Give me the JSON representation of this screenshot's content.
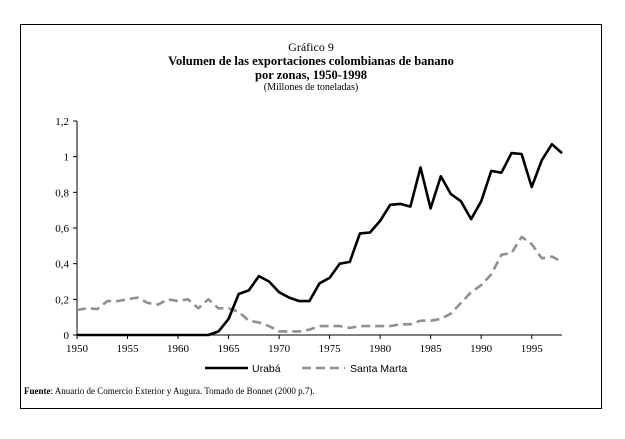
{
  "chart_data": {
    "type": "line",
    "title": "Gráfico 9",
    "subtitle": "Volumen de las exportaciones colombianas de banano",
    "subtitle2": "por zonas, 1950-1998",
    "units": "(Millones de toneladas)",
    "xlabel": "",
    "ylabel": "",
    "xlim": [
      1950,
      1998
    ],
    "ylim": [
      0,
      1.2
    ],
    "x_ticks": [
      "1950",
      "1955",
      "1960",
      "1965",
      "1970",
      "1975",
      "1980",
      "1985",
      "1990",
      "1995"
    ],
    "y_ticks": [
      "0",
      "0,2",
      "0,4",
      "0,6",
      "0,8",
      "1",
      "1,2"
    ],
    "grid": false,
    "legend_position": "bottom",
    "series": [
      {
        "name": "Urabá",
        "color": "#000000",
        "dash": "solid",
        "x": [
          1950,
          1951,
          1952,
          1953,
          1954,
          1955,
          1956,
          1957,
          1958,
          1959,
          1960,
          1961,
          1962,
          1963,
          1964,
          1965,
          1966,
          1967,
          1968,
          1969,
          1970,
          1971,
          1972,
          1973,
          1974,
          1975,
          1976,
          1977,
          1978,
          1979,
          1980,
          1981,
          1982,
          1983,
          1984,
          1985,
          1986,
          1987,
          1988,
          1989,
          1990,
          1991,
          1992,
          1993,
          1994,
          1995,
          1996,
          1997,
          1998
        ],
        "values": [
          0,
          0,
          0,
          0,
          0,
          0,
          0,
          0,
          0,
          0,
          0,
          0,
          0,
          0,
          0.02,
          0.09,
          0.23,
          0.25,
          0.33,
          0.3,
          0.24,
          0.21,
          0.19,
          0.19,
          0.29,
          0.32,
          0.4,
          0.41,
          0.57,
          0.575,
          0.64,
          0.73,
          0.735,
          0.72,
          0.94,
          0.71,
          0.89,
          0.79,
          0.75,
          0.65,
          0.75,
          0.92,
          0.91,
          1.02,
          1.015,
          0.83,
          0.98,
          1.07,
          1.02
        ]
      },
      {
        "name": "Santa Marta",
        "color": "#909090",
        "dash": "dashed",
        "x": [
          1950,
          1951,
          1952,
          1953,
          1954,
          1955,
          1956,
          1957,
          1958,
          1959,
          1960,
          1961,
          1962,
          1963,
          1964,
          1965,
          1966,
          1967,
          1968,
          1969,
          1970,
          1971,
          1972,
          1973,
          1974,
          1975,
          1976,
          1977,
          1978,
          1979,
          1980,
          1981,
          1982,
          1983,
          1984,
          1985,
          1986,
          1987,
          1988,
          1989,
          1990,
          1991,
          1992,
          1993,
          1994,
          1995,
          1996,
          1997,
          1998
        ],
        "values": [
          0.14,
          0.15,
          0.145,
          0.19,
          0.19,
          0.2,
          0.21,
          0.18,
          0.17,
          0.2,
          0.19,
          0.2,
          0.15,
          0.2,
          0.15,
          0.15,
          0.13,
          0.08,
          0.07,
          0.05,
          0.02,
          0.02,
          0.02,
          0.03,
          0.05,
          0.05,
          0.05,
          0.04,
          0.05,
          0.05,
          0.05,
          0.05,
          0.06,
          0.06,
          0.08,
          0.08,
          0.09,
          0.12,
          0.18,
          0.24,
          0.28,
          0.34,
          0.45,
          0.46,
          0.55,
          0.51,
          0.43,
          0.44,
          0.41
        ]
      }
    ]
  },
  "source": {
    "label": "Fuente",
    "text": ": Anuario de Comercio Exterior y Augura. Tomado de Bonnet (2000 p.7)."
  }
}
